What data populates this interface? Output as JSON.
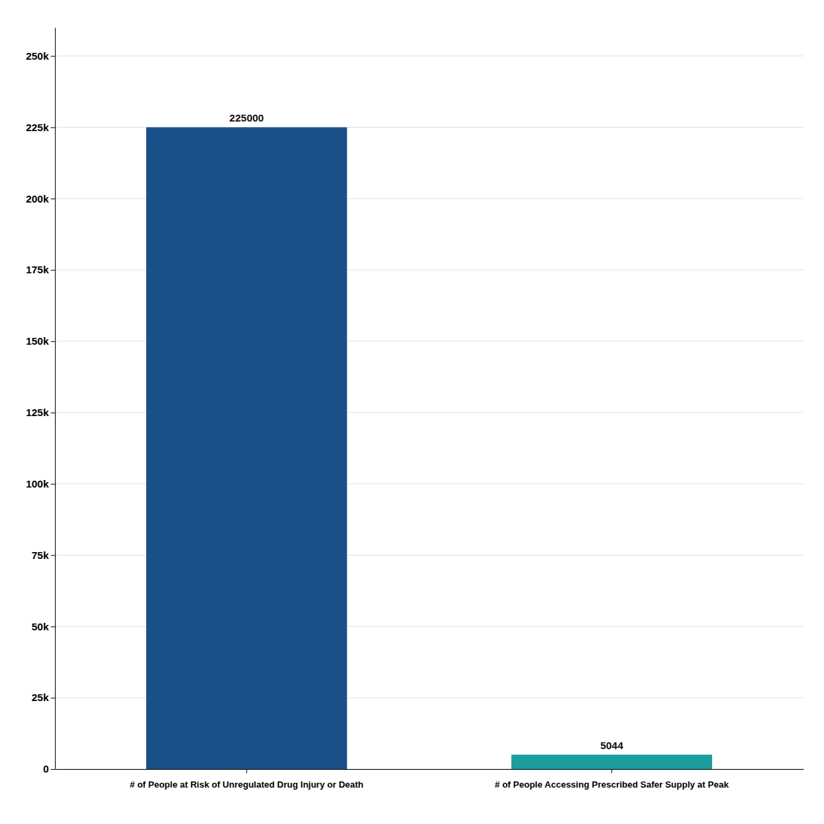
{
  "chart_data": {
    "type": "bar",
    "categories": [
      "# of People at Risk of Unregulated Drug Injury or Death",
      "# of People Accessing Prescribed Safer Supply at Peak"
    ],
    "values": [
      225000,
      5044
    ],
    "colors": [
      "#1a4f8a",
      "#1a9e9e"
    ],
    "ylim": [
      0,
      260000
    ],
    "yticks": [
      0,
      {
        "value": 25000,
        "label": "25k"
      },
      {
        "value": 50000,
        "label": "50k"
      },
      {
        "value": 75000,
        "label": "75k"
      },
      {
        "value": 100000,
        "label": "100k"
      },
      {
        "value": 125000,
        "label": "125k"
      },
      {
        "value": 150000,
        "label": "150k"
      },
      {
        "value": 175000,
        "label": "175k"
      },
      {
        "value": 200000,
        "label": "200k"
      },
      {
        "value": 225000,
        "label": "225k"
      },
      {
        "value": 250000,
        "label": "250k"
      }
    ],
    "grid": true,
    "data_labels": true
  }
}
